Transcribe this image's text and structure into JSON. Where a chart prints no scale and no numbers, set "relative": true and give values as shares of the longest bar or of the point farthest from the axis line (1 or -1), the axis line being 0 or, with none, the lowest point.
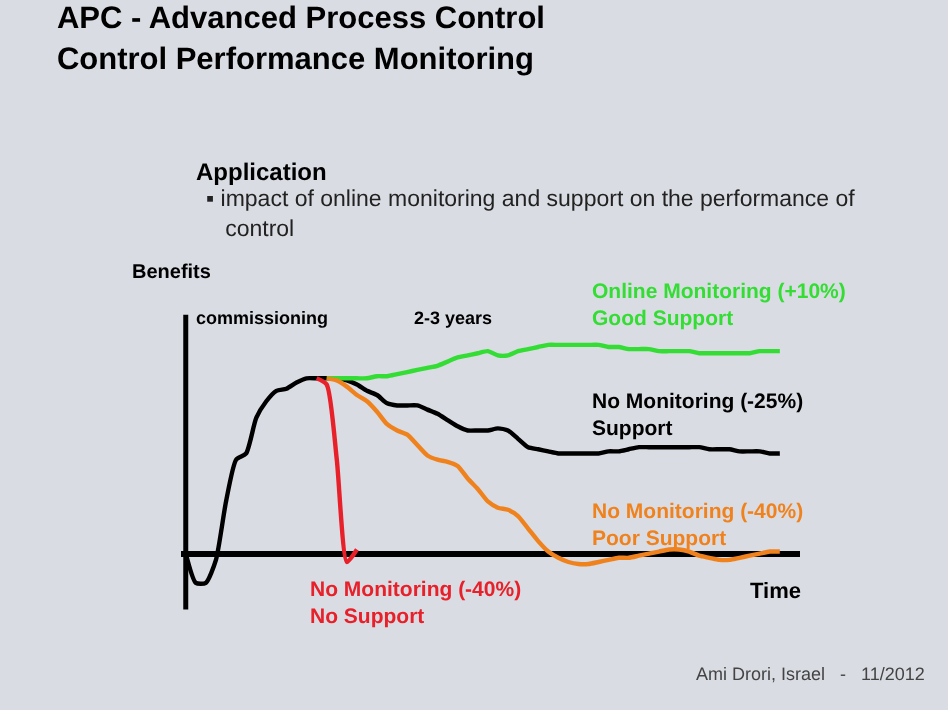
{
  "chart_data": {
    "type": "line",
    "relative": true,
    "title": "APC - Advanced Process Control\nControl Performance Monitoring",
    "ylabel": "Benefits",
    "xlabel": "Time",
    "legend": false,
    "grid": false,
    "marker": "none",
    "line_style": "solid",
    "annotations": [
      "Application",
      "▪ impact of online monitoring and support on the performance of\n   control",
      "commissioning",
      "2-3 years",
      "Ami Drori, Israel   -   11/2012"
    ],
    "categories": [
      null,
      null,
      null,
      null,
      null,
      null,
      null,
      null,
      null,
      null,
      null,
      null,
      null,
      null,
      null,
      null,
      null,
      null,
      null,
      null,
      null,
      null,
      null,
      null,
      null,
      null,
      null,
      null,
      null,
      null,
      null,
      null,
      null,
      null,
      null,
      null,
      null,
      null,
      null,
      null,
      null,
      null,
      null,
      null,
      null,
      null,
      null,
      null,
      null,
      null,
      null,
      null,
      null,
      null,
      null,
      null,
      null,
      null,
      null,
      null
    ],
    "series": [
      {
        "name": "No Monitoring (-25%)\nSupport",
        "color": "#000000",
        "values": [
          0,
          -0.14,
          -0.14,
          -0.03,
          0.25,
          0.45,
          0.48,
          0.65,
          0.73,
          0.78,
          0.79,
          0.82,
          0.84,
          0.84,
          0.84,
          0.84,
          0.83,
          0.81,
          0.78,
          0.76,
          0.72,
          0.71,
          0.71,
          0.71,
          0.69,
          0.67,
          0.64,
          0.61,
          0.59,
          0.59,
          0.59,
          0.6,
          0.59,
          0.55,
          0.51,
          0.5,
          0.49,
          0.48,
          0.48,
          0.48,
          0.48,
          0.48,
          0.49,
          0.49,
          0.5,
          0.51,
          0.51,
          0.51,
          0.51,
          0.51,
          0.51,
          0.51,
          0.5,
          0.5,
          0.5,
          0.49,
          0.49,
          0.49,
          0.48,
          0.48
        ]
      },
      {
        "name": "Online Monitoring (+10%)\nGood Support",
        "color": "#33dd33",
        "values": [
          null,
          null,
          null,
          null,
          null,
          null,
          null,
          null,
          null,
          null,
          null,
          null,
          null,
          null,
          0.84,
          0.84,
          0.84,
          0.84,
          0.84,
          0.85,
          0.85,
          0.86,
          0.87,
          0.88,
          0.89,
          0.9,
          0.92,
          0.94,
          0.95,
          0.96,
          0.97,
          0.95,
          0.95,
          0.97,
          0.98,
          0.99,
          1,
          1,
          1,
          1,
          1,
          1,
          0.99,
          0.99,
          0.98,
          0.98,
          0.98,
          0.97,
          0.97,
          0.97,
          0.97,
          0.96,
          0.96,
          0.96,
          0.96,
          0.96,
          0.96,
          0.97,
          0.97,
          0.97
        ]
      },
      {
        "name": "No Monitoring (-40%)\nPoor Support",
        "color": "#f0821e",
        "values": [
          null,
          null,
          null,
          null,
          null,
          null,
          null,
          null,
          null,
          null,
          null,
          null,
          null,
          null,
          0.84,
          0.83,
          0.8,
          0.76,
          0.73,
          0.68,
          0.62,
          0.59,
          0.57,
          0.52,
          0.47,
          0.45,
          0.44,
          0.42,
          0.36,
          0.31,
          0.25,
          0.22,
          0.21,
          0.18,
          0.12,
          0.06,
          0.01,
          -0.02,
          -0.04,
          -0.05,
          -0.05,
          -0.04,
          -0.03,
          -0.02,
          -0.02,
          -0.01,
          0,
          0.01,
          0.02,
          0.02,
          0.01,
          -0.01,
          -0.02,
          -0.03,
          -0.03,
          -0.02,
          -0.01,
          0,
          0.01,
          0.01
        ]
      },
      {
        "name": "No Monitoring (-40%)\nNo Support",
        "color": "#e8202a",
        "values": [
          null,
          null,
          null,
          null,
          null,
          null,
          null,
          null,
          null,
          null,
          null,
          null,
          null,
          0.84,
          0.81,
          0.45,
          -0.04,
          0.02,
          null,
          null,
          null,
          null,
          null,
          null,
          null,
          null,
          null,
          null,
          null,
          null,
          null,
          null,
          null,
          null,
          null,
          null,
          null,
          null,
          null,
          null,
          null,
          null,
          null,
          null,
          null,
          null,
          null,
          null,
          null,
          null,
          null,
          null,
          null,
          null,
          null,
          null,
          null,
          null,
          null,
          null
        ]
      }
    ]
  }
}
